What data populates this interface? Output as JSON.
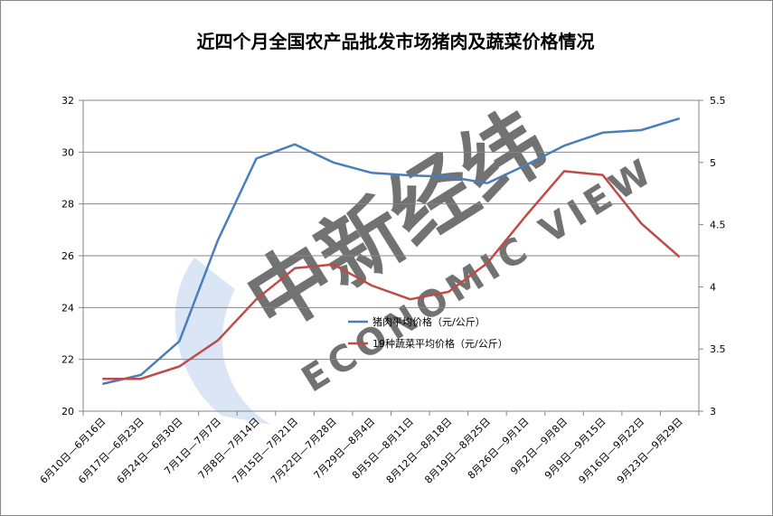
{
  "chart_data": {
    "type": "line",
    "title": "近四个月全国农产品批发市场猪肉及蔬菜价格情况",
    "categories": [
      "6月10日—6月16日",
      "6月17日—6月23日",
      "6月24日—6月30日",
      "7月1日—7月7日",
      "7月8日—7月14日",
      "7月15日—7月21日",
      "7月22日—7月28日",
      "7月29日—8月4日",
      "8月5日—8月11日",
      "8月12日—8月18日",
      "8月19日—8月25日",
      "8月26日—9月1日",
      "9月2日—9月8日",
      "9月9日—9月15日",
      "9月16日—9月22日",
      "9月23日—9月29日"
    ],
    "y_left": {
      "min": 20,
      "max": 32,
      "ticks": [
        "20",
        "22",
        "24",
        "26",
        "28",
        "30",
        "32"
      ]
    },
    "y_right": {
      "min": 3,
      "max": 5.5,
      "ticks": [
        "3",
        "3.5",
        "4",
        "4.5",
        "5",
        "5.5"
      ]
    },
    "grid": true,
    "legend_position": "center",
    "series": [
      {
        "name": "猪肉平均价格（元/公斤）",
        "axis": "left",
        "color": "#4a7ebb",
        "values": [
          21.05,
          21.4,
          22.7,
          26.6,
          29.75,
          30.3,
          29.6,
          29.2,
          29.1,
          29.05,
          28.8,
          29.5,
          30.25,
          30.75,
          30.85,
          31.3
        ]
      },
      {
        "name": "19种蔬菜平均价格（元/公斤）",
        "axis": "right",
        "color": "#be4b48",
        "values": [
          3.26,
          3.26,
          3.36,
          3.57,
          3.9,
          4.15,
          4.18,
          4.01,
          3.9,
          3.96,
          4.19,
          4.57,
          4.93,
          4.9,
          4.51,
          4.24
        ]
      }
    ],
    "watermark": {
      "text_main": "中新经纬",
      "text_sub": "ECONOMIC VIEW"
    }
  }
}
